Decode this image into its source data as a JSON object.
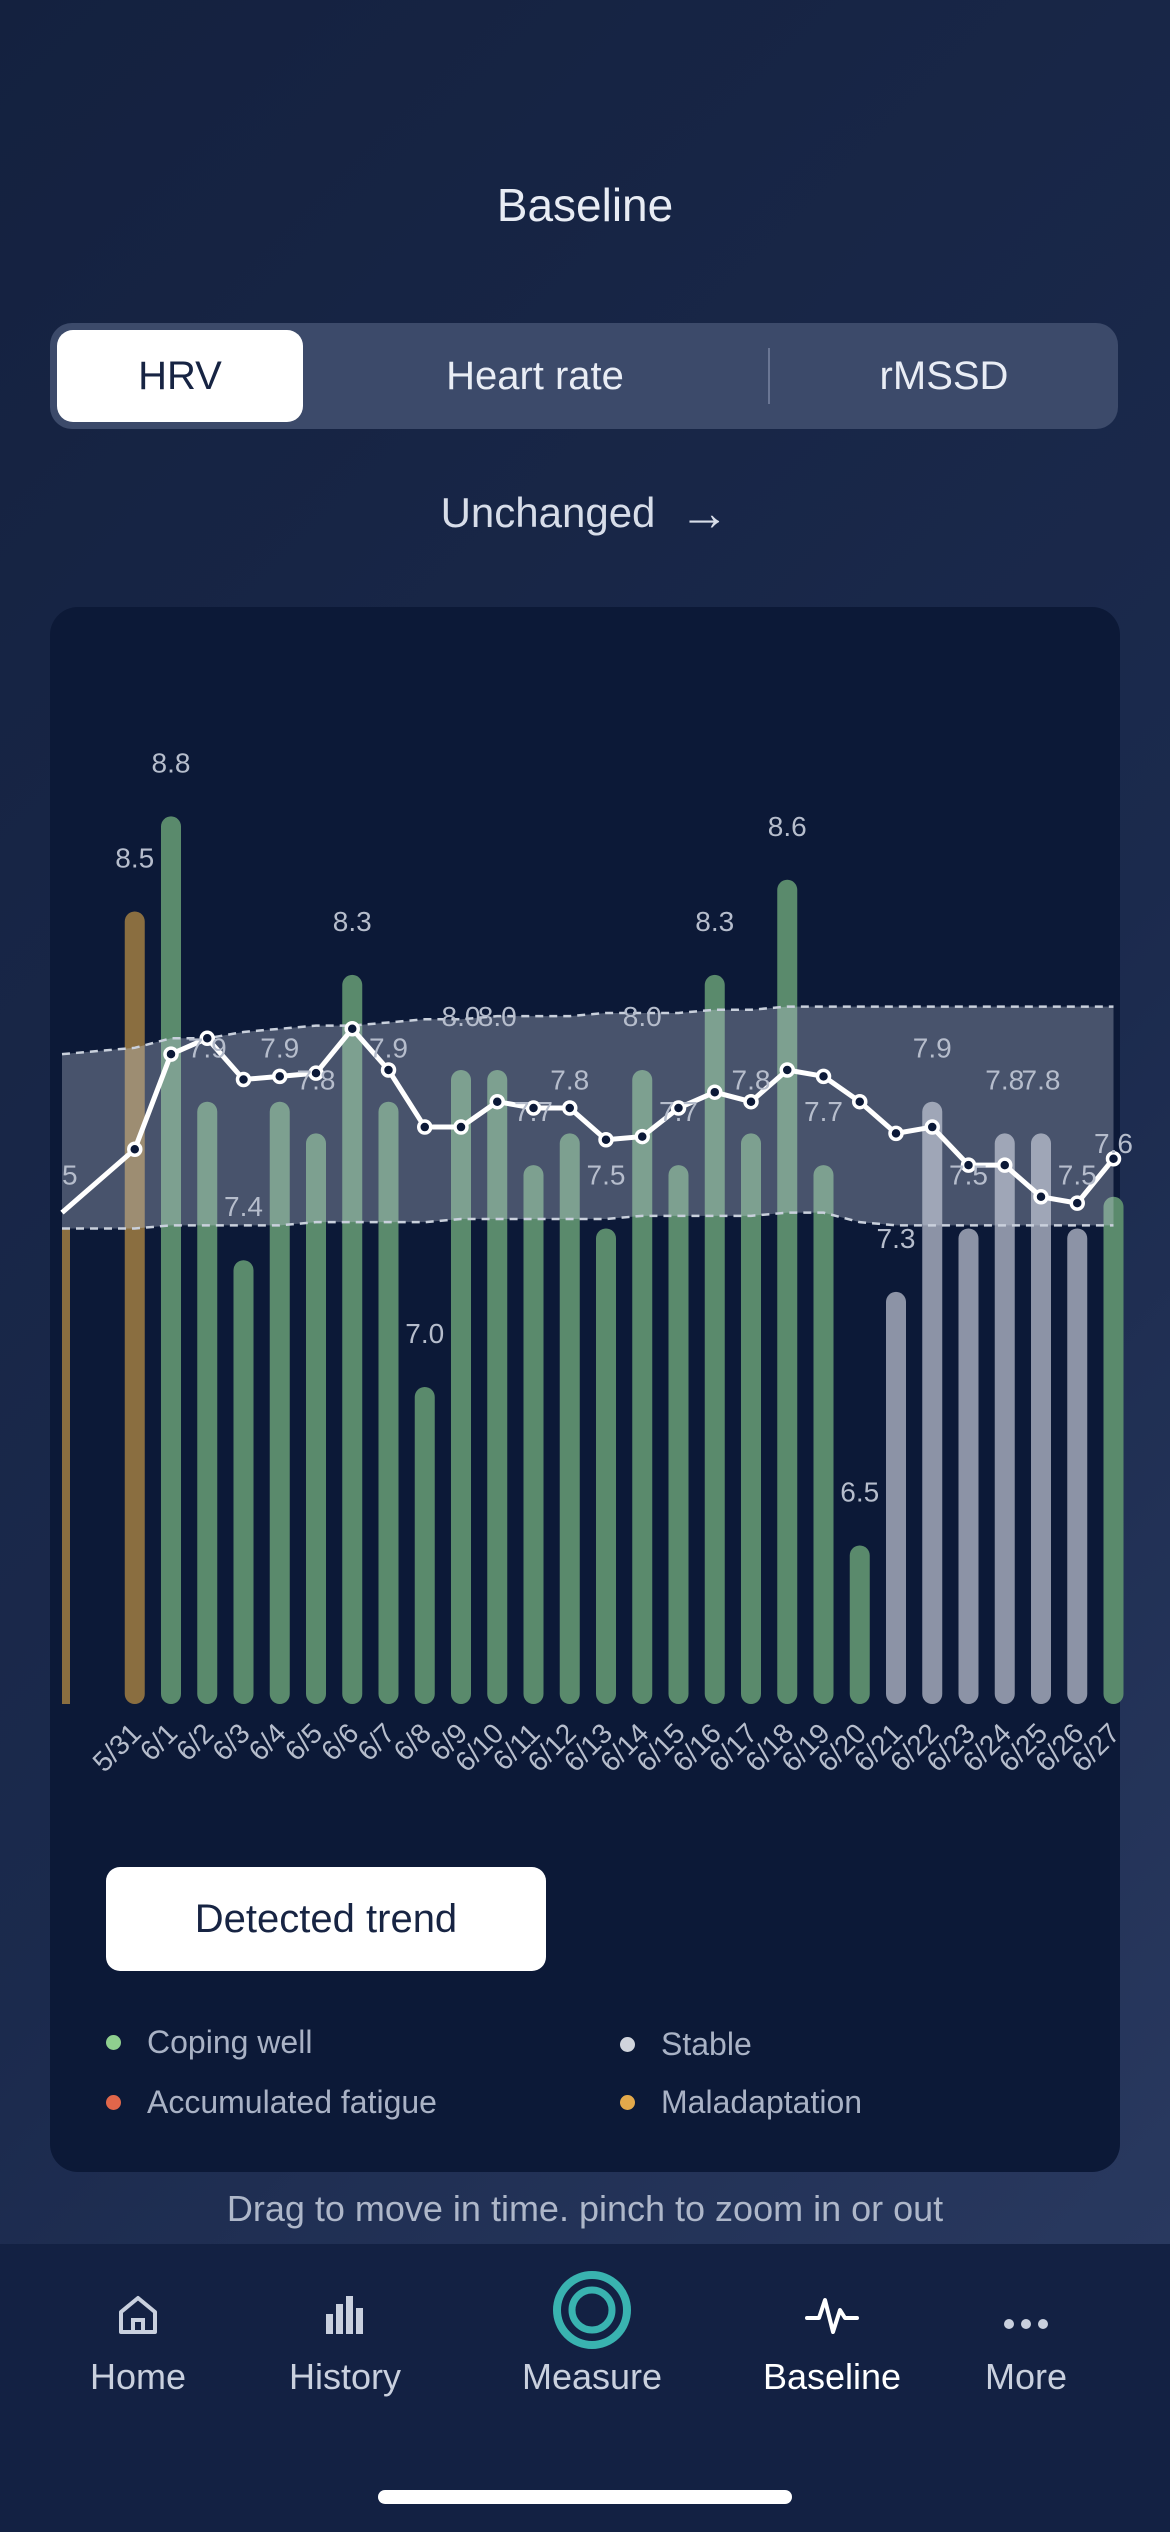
{
  "header": {
    "title": "Baseline"
  },
  "tabs": [
    {
      "label": "HRV",
      "active": true
    },
    {
      "label": "Heart rate",
      "active": false
    },
    {
      "label": "rMSSD",
      "active": false
    }
  ],
  "trend": {
    "label": "Unchanged",
    "arrow": "→"
  },
  "chart_data": {
    "type": "bar",
    "categories": [
      "5/31",
      "6/1",
      "6/2",
      "6/3",
      "6/4",
      "6/5",
      "6/6",
      "6/7",
      "6/8",
      "6/9",
      "6/10",
      "6/11",
      "6/12",
      "6/13",
      "6/14",
      "6/15",
      "6/16",
      "6/17",
      "6/18",
      "6/19",
      "6/20",
      "6/21",
      "6/22",
      "6/23",
      "6/24",
      "6/25",
      "6/26",
      "6/27"
    ],
    "values": [
      8.5,
      8.8,
      7.9,
      7.4,
      7.9,
      7.8,
      8.3,
      7.9,
      7.0,
      8.0,
      8.0,
      7.7,
      7.8,
      7.5,
      8.0,
      7.7,
      8.3,
      7.8,
      8.6,
      7.7,
      6.5,
      7.3,
      7.9,
      7.5,
      7.8,
      7.8,
      7.5,
      7.6
    ],
    "bar_status": [
      "maladaptation",
      "coping",
      "coping",
      "coping",
      "coping",
      "coping",
      "coping",
      "coping",
      "coping",
      "coping",
      "coping",
      "coping",
      "coping",
      "coping",
      "coping",
      "coping",
      "coping",
      "coping",
      "coping",
      "coping",
      "coping",
      "stable",
      "stable",
      "stable",
      "stable",
      "stable",
      "stable",
      "coping"
    ],
    "baseline_line": [
      7.55,
      7.75,
      8.05,
      8.1,
      7.97,
      7.98,
      7.99,
      8.13,
      8.0,
      7.82,
      7.82,
      7.9,
      7.88,
      7.88,
      7.78,
      7.79,
      7.88,
      7.93,
      7.9,
      8.0,
      7.98,
      7.9,
      7.8,
      7.82,
      7.7,
      7.7,
      7.6,
      7.58,
      7.72
    ],
    "band_upper": [
      8.05,
      8.07,
      8.1,
      8.1,
      8.12,
      8.13,
      8.14,
      8.14,
      8.15,
      8.16,
      8.16,
      8.17,
      8.17,
      8.17,
      8.18,
      8.18,
      8.18,
      8.19,
      8.19,
      8.2,
      8.2,
      8.2,
      8.2,
      8.2,
      8.2,
      8.2,
      8.2,
      8.2,
      8.2
    ],
    "band_lower": [
      7.5,
      7.5,
      7.51,
      7.51,
      7.51,
      7.51,
      7.52,
      7.52,
      7.52,
      7.52,
      7.53,
      7.53,
      7.53,
      7.53,
      7.53,
      7.54,
      7.54,
      7.54,
      7.54,
      7.55,
      7.55,
      7.52,
      7.51,
      7.51,
      7.51,
      7.51,
      7.51,
      7.51,
      7.51
    ],
    "partial_first_label": "5",
    "ylim": [
      6.0,
      9.2
    ],
    "grid": false,
    "legend_position": "bottom"
  },
  "colors": {
    "coping": "#5a8a6c",
    "stable": "#8c93a6",
    "maladaptation": "#8a6e40",
    "line": "#ffffff",
    "band": "#5f6b82"
  },
  "detected_button": {
    "label": "Detected trend"
  },
  "legend": [
    {
      "label": "Coping well",
      "color": "#8fcf8f"
    },
    {
      "label": "Stable",
      "color": "#d0d4dc"
    },
    {
      "label": "Accumulated fatigue",
      "color": "#e0664a"
    },
    {
      "label": "Maladaptation",
      "color": "#e3a94b"
    }
  ],
  "hint": "Drag to move in time. pinch to zoom in or out",
  "nav": [
    {
      "label": "Home",
      "icon": "home-icon",
      "active": false
    },
    {
      "label": "History",
      "icon": "history-icon",
      "active": false
    },
    {
      "label": "Measure",
      "icon": "measure-icon",
      "active": false
    },
    {
      "label": "Baseline",
      "icon": "baseline-icon",
      "active": true
    },
    {
      "label": "More",
      "icon": "more-icon",
      "active": false
    }
  ]
}
